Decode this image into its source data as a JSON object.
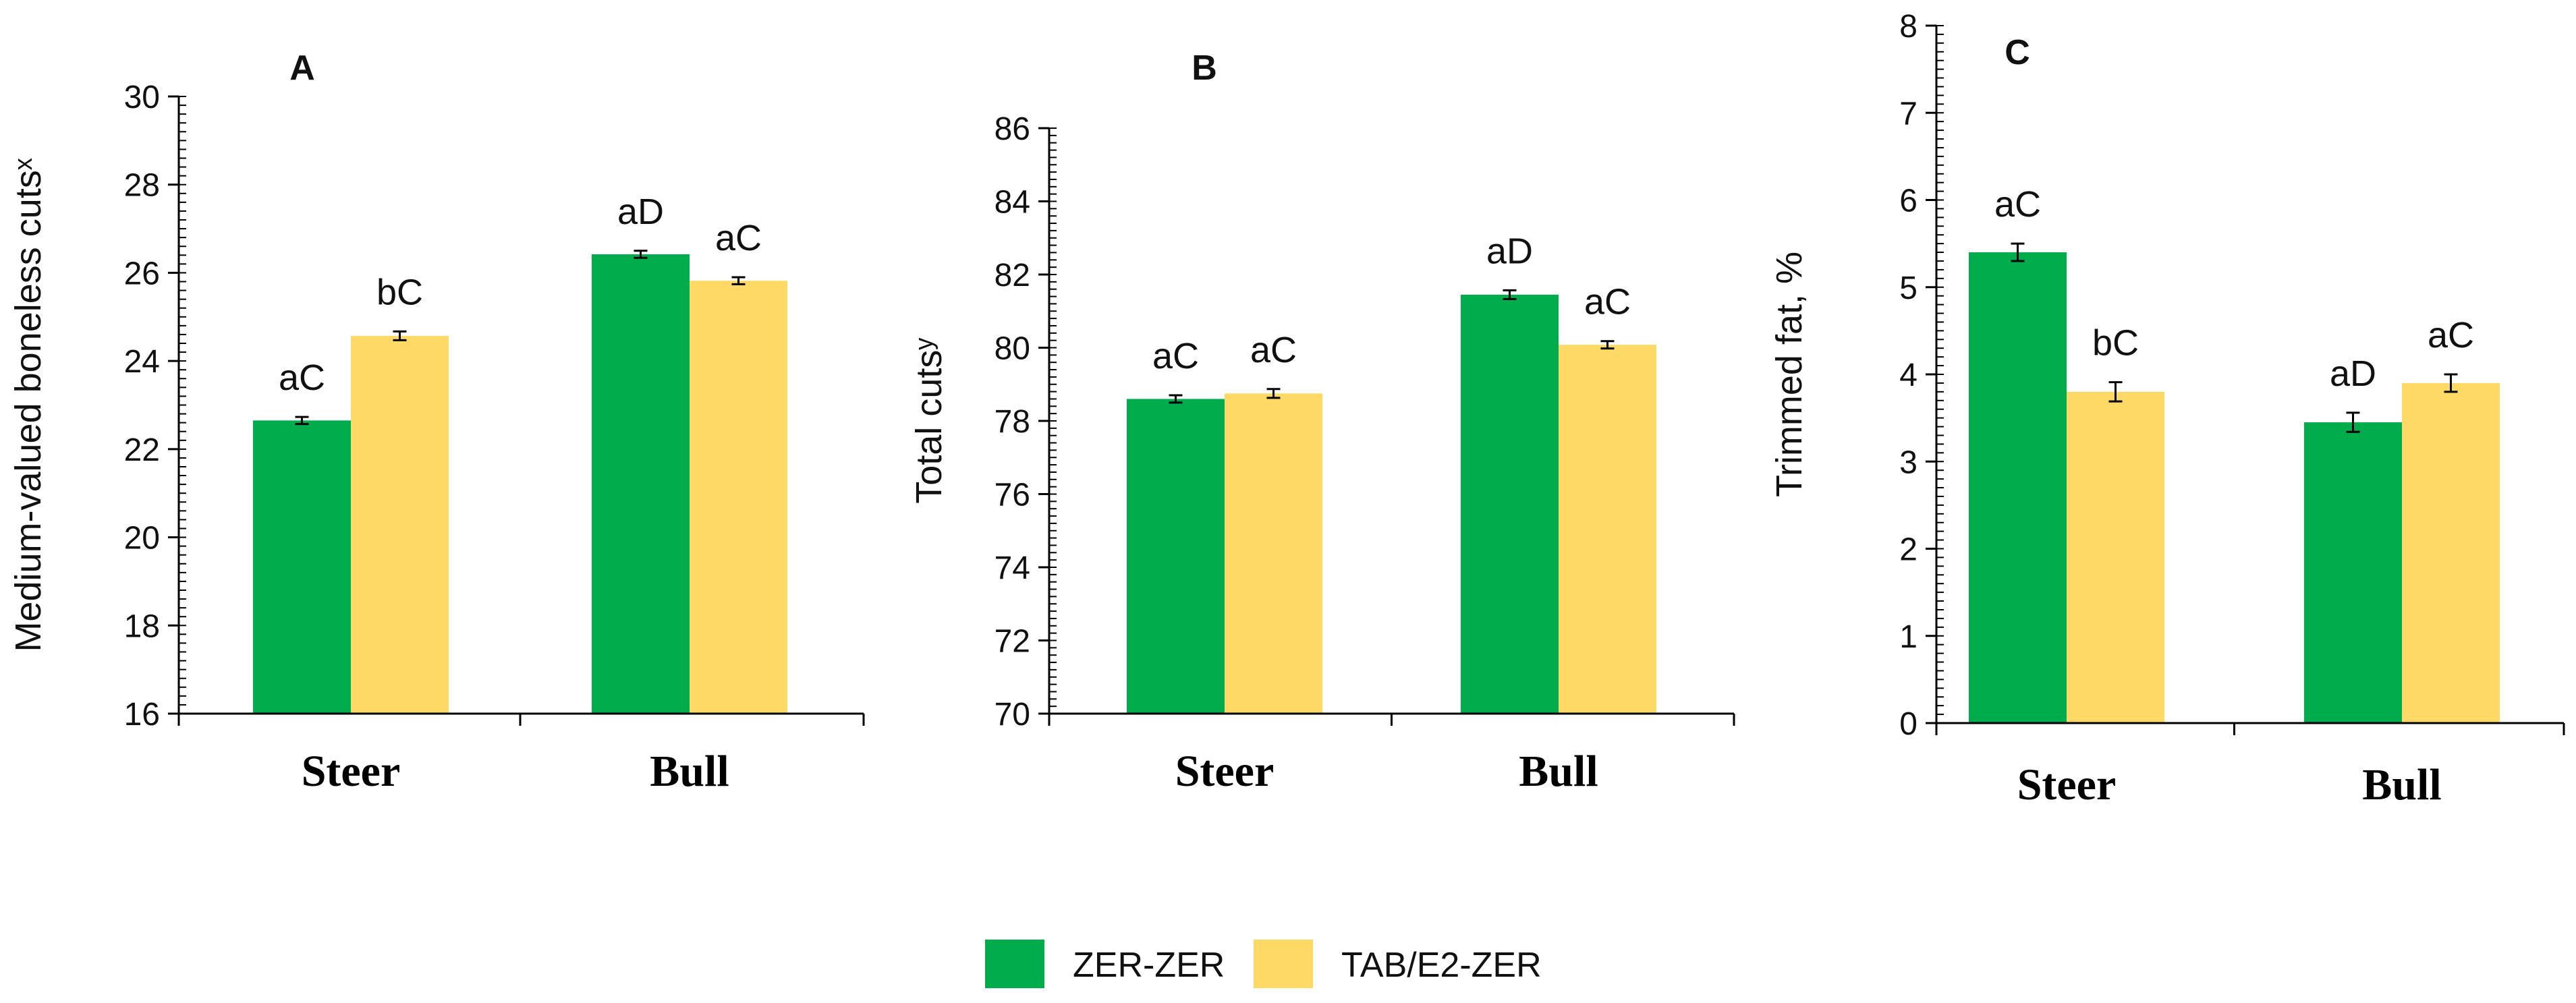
{
  "colors": {
    "series1": "#00ac4b",
    "series2": "#ffd966",
    "axis": "#000000",
    "text": "#111111"
  },
  "legend": {
    "items": [
      {
        "label": "ZER-ZER",
        "color": "#00ac4b"
      },
      {
        "label": "TAB/E2-ZER",
        "color": "#ffd966"
      }
    ]
  },
  "chart_data": [
    {
      "type": "bar",
      "panel_label": "A",
      "ylabel": "Medium-valued boneless cutsˣ",
      "xlabel": "",
      "ylim": [
        16,
        30
      ],
      "yticks": [
        16,
        18,
        20,
        22,
        24,
        26,
        28,
        30
      ],
      "categories": [
        "Steer",
        "Bull"
      ],
      "series": [
        {
          "name": "ZER-ZER",
          "values": [
            22.65,
            26.42
          ],
          "errors": [
            0.08,
            0.08
          ],
          "letters": [
            "aC",
            "aD"
          ]
        },
        {
          "name": "TAB/E2-ZER",
          "values": [
            24.57,
            25.82
          ],
          "errors": [
            0.1,
            0.08
          ],
          "letters": [
            "bC",
            "aC"
          ]
        }
      ]
    },
    {
      "type": "bar",
      "panel_label": "B",
      "ylabel": "Total cutsʸ",
      "xlabel": "",
      "ylim": [
        70,
        86
      ],
      "yticks": [
        70,
        72,
        74,
        76,
        78,
        80,
        82,
        84,
        86
      ],
      "categories": [
        "Steer",
        "Bull"
      ],
      "series": [
        {
          "name": "ZER-ZER",
          "values": [
            78.6,
            81.45
          ],
          "errors": [
            0.1,
            0.12
          ],
          "letters": [
            "aC",
            "aD"
          ]
        },
        {
          "name": "TAB/E2-ZER",
          "values": [
            78.75,
            80.08
          ],
          "errors": [
            0.12,
            0.1
          ],
          "letters": [
            "aC",
            "aC"
          ]
        }
      ]
    },
    {
      "type": "bar",
      "panel_label": "C",
      "ylabel": "Trimmed fat, %",
      "xlabel": "",
      "ylim": [
        0,
        8
      ],
      "yticks": [
        0,
        1,
        2,
        3,
        4,
        5,
        6,
        7,
        8
      ],
      "categories": [
        "Steer",
        "Bull"
      ],
      "series": [
        {
          "name": "ZER-ZER",
          "values": [
            5.4,
            3.45
          ],
          "errors": [
            0.1,
            0.11
          ],
          "letters": [
            "aC",
            "aD"
          ]
        },
        {
          "name": "TAB/E2-ZER",
          "values": [
            3.8,
            3.9
          ],
          "errors": [
            0.11,
            0.1
          ],
          "letters": [
            "bC",
            "aC"
          ]
        }
      ]
    }
  ]
}
